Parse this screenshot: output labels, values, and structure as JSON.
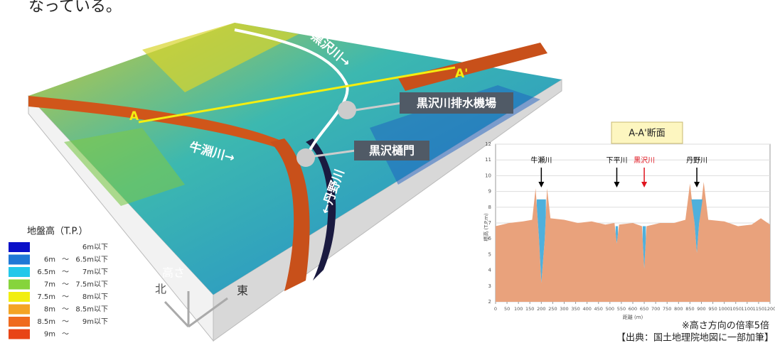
{
  "text": {
    "lead": "なっている。",
    "note": "※高さ方向の倍率5倍",
    "source": "【出典：国土地理院地図に一部加筆】"
  },
  "map": {
    "labels": {
      "kurosawa_river": "黒沢川→",
      "a_prime": "A'",
      "a": "A",
      "pump": "黒沢川排水機場",
      "ushibuchi": "牛淵川→",
      "gate": "黒沢樋門",
      "tanno": "←丹野川",
      "height": "高さ",
      "north": "北",
      "east": "東"
    }
  },
  "legend": {
    "title": "地盤高（T.P.）",
    "separator": "～",
    "items": [
      {
        "color": "#0a10c8",
        "to": "6m以下"
      },
      {
        "color": "#1f78d6",
        "from": "6m",
        "to": "6.5m以下"
      },
      {
        "color": "#22c8ea",
        "from": "6.5m",
        "to": "7m以下"
      },
      {
        "color": "#86d43c",
        "from": "7m",
        "to": "7.5m以下"
      },
      {
        "color": "#f2ee10",
        "from": "7.5m",
        "to": "8m以下"
      },
      {
        "color": "#f4a424",
        "from": "8m",
        "to": "8.5m以下"
      },
      {
        "color": "#ef6a1e",
        "from": "8.5m",
        "to": "9m以下"
      },
      {
        "color": "#e84416",
        "from": "9m"
      }
    ]
  },
  "chart_data": {
    "type": "area",
    "title": "A-A'断面",
    "x_label": "距離 (m)",
    "y_label": "標高 (T.P.m)",
    "color": "#e9a27c",
    "water_color": "#4fb0dc",
    "x": [
      0,
      60,
      120,
      160,
      175,
      190,
      200,
      215,
      225,
      240,
      300,
      360,
      420,
      480,
      520,
      530,
      540,
      600,
      640,
      650,
      660,
      720,
      780,
      830,
      850,
      870,
      880,
      890,
      910,
      930,
      1000,
      1060,
      1120,
      1160,
      1200
    ],
    "values": [
      6.8,
      7.0,
      7.1,
      7.2,
      9.2,
      6,
      3.2,
      6,
      9.2,
      7.3,
      7.2,
      7.0,
      7.1,
      6.9,
      7.0,
      5.7,
      6.9,
      7.0,
      6.8,
      4.1,
      6.8,
      7.0,
      7.0,
      7.2,
      9.5,
      7.0,
      5.1,
      7.0,
      9.6,
      7.2,
      7.1,
      6.8,
      6.9,
      7.3,
      6.9
    ],
    "water": [
      {
        "x": [
          180,
          220
        ],
        "level": 8.5
      },
      {
        "x": [
          525,
          535
        ],
        "level": 6.8
      },
      {
        "x": [
          643,
          657
        ],
        "level": 6.8
      },
      {
        "x": [
          856,
          905
        ],
        "level": 8.5
      }
    ],
    "annotations": [
      {
        "text": "牛瀬川",
        "x": 200,
        "color": "#000"
      },
      {
        "text": "下平川",
        "x": 530,
        "color": "#000"
      },
      {
        "text": "黒沢川",
        "x": 650,
        "color": "#e0141e"
      },
      {
        "text": "丹野川",
        "x": 880,
        "color": "#000"
      }
    ],
    "xlim": [
      0,
      1200
    ],
    "ylim": [
      2,
      12
    ],
    "xticks": [
      0,
      50,
      100,
      150,
      200,
      250,
      300,
      350,
      400,
      450,
      500,
      550,
      600,
      650,
      700,
      750,
      800,
      850,
      900,
      950,
      1000,
      1050,
      1100,
      1150,
      1200
    ],
    "yticks": [
      2,
      3,
      4,
      5,
      6,
      7,
      8,
      9,
      10,
      11,
      12
    ],
    "grid": true
  }
}
